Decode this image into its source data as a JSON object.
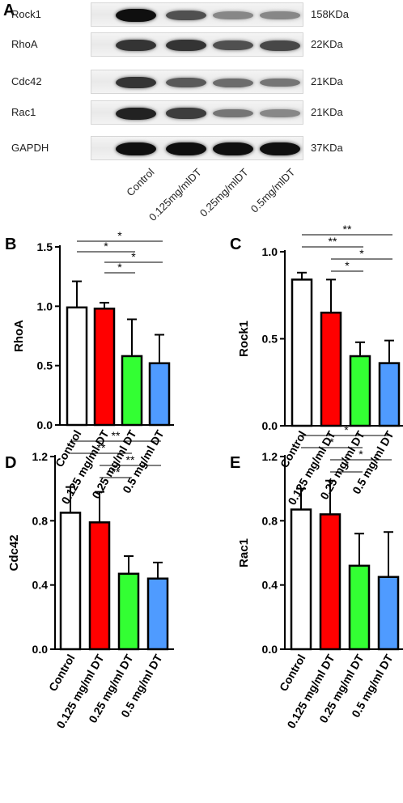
{
  "panelA": {
    "letter": "A",
    "rows": [
      {
        "label": "Rock1",
        "kda": "158KDa",
        "intensity": [
          1.0,
          0.65,
          0.35,
          0.35
        ]
      },
      {
        "label": "RhoA",
        "kda": "22KDa",
        "intensity": [
          0.8,
          0.8,
          0.65,
          0.7
        ]
      },
      {
        "label": "Cdc42",
        "kda": "21KDa",
        "intensity": [
          0.8,
          0.6,
          0.5,
          0.45
        ]
      },
      {
        "label": "Rac1",
        "kda": "21KDa",
        "intensity": [
          0.9,
          0.75,
          0.45,
          0.35
        ]
      },
      {
        "label": "GAPDH",
        "kda": "37KDa",
        "intensity": [
          1.0,
          1.0,
          1.0,
          1.0
        ]
      }
    ],
    "lanes": [
      "Control",
      "0.125mg/mlDT",
      "0.25mg/mlDT",
      "0.5mg/mlDT"
    ]
  },
  "chart_data": [
    {
      "panel": "B",
      "type": "bar",
      "ylabel": "RhoA",
      "ylim": [
        0,
        1.5
      ],
      "yticks": [
        "0.0",
        "0.5",
        "1.0",
        "1.5"
      ],
      "categories": [
        "Control",
        "0.125 mg/ml DT",
        "0.25 mg/ml DT",
        "0.5 mg/ml DT"
      ],
      "values": [
        0.99,
        0.98,
        0.58,
        0.52
      ],
      "errors": [
        0.22,
        0.05,
        0.31,
        0.24
      ],
      "colors": [
        "#ffffff",
        "#ff0000",
        "#33ff33",
        "#4f9bff"
      ],
      "significance": [
        {
          "from": 0,
          "to": 3,
          "label": "*"
        },
        {
          "from": 0,
          "to": 2,
          "label": "*"
        },
        {
          "from": 1,
          "to": 3,
          "label": "*"
        },
        {
          "from": 1,
          "to": 2,
          "label": "*"
        }
      ]
    },
    {
      "panel": "C",
      "type": "bar",
      "ylabel": "Rock1",
      "ylim": [
        0,
        1.0
      ],
      "yticks": [
        "0.0",
        "0.5",
        "1.0"
      ],
      "categories": [
        "Control",
        "0.125 mg/ml DT",
        "0.25 mg/ml DT",
        "0.5 mg/ml DT"
      ],
      "values": [
        0.84,
        0.65,
        0.4,
        0.36
      ],
      "errors": [
        0.04,
        0.19,
        0.08,
        0.13
      ],
      "colors": [
        "#ffffff",
        "#ff0000",
        "#33ff33",
        "#4f9bff"
      ],
      "significance": [
        {
          "from": 0,
          "to": 3,
          "label": "**"
        },
        {
          "from": 0,
          "to": 2,
          "label": "**"
        },
        {
          "from": 1,
          "to": 3,
          "label": "*"
        },
        {
          "from": 1,
          "to": 2,
          "label": "*"
        }
      ]
    },
    {
      "panel": "D",
      "type": "bar",
      "ylabel": "Cdc42",
      "ylim": [
        0,
        1.2
      ],
      "yticks": [
        "0.0",
        "0.4",
        "0.8",
        "1.2"
      ],
      "categories": [
        "Control",
        "0.125 mg/ml DT",
        "0.25 mg/ml DT",
        "0.5 mg/ml DT"
      ],
      "values": [
        0.85,
        0.79,
        0.47,
        0.44
      ],
      "errors": [
        0.16,
        0.19,
        0.11,
        0.1
      ],
      "colors": [
        "#ffffff",
        "#ff0000",
        "#33ff33",
        "#4f9bff"
      ],
      "significance": [
        {
          "from": 0,
          "to": 3,
          "label": "**"
        },
        {
          "from": 0,
          "to": 2,
          "label": "**"
        },
        {
          "from": 1,
          "to": 3,
          "label": "**"
        },
        {
          "from": 1,
          "to": 2,
          "label": "**"
        }
      ]
    },
    {
      "panel": "E",
      "type": "bar",
      "ylabel": "Rac1",
      "ylim": [
        0,
        1.2
      ],
      "yticks": [
        "0.0",
        "0.4",
        "0.8",
        "1.2"
      ],
      "categories": [
        "Control",
        "0.125 mg/ml DT",
        "0.25 mg/ml DT",
        "0.5 mg/ml DT"
      ],
      "values": [
        0.87,
        0.84,
        0.52,
        0.45
      ],
      "errors": [
        0.13,
        0.21,
        0.2,
        0.28
      ],
      "colors": [
        "#ffffff",
        "#ff0000",
        "#33ff33",
        "#4f9bff"
      ],
      "significance": [
        {
          "from": 0,
          "to": 3,
          "label": "*"
        },
        {
          "from": 0,
          "to": 2,
          "label": "*"
        },
        {
          "from": 1,
          "to": 3,
          "label": "*"
        },
        {
          "from": 1,
          "to": 2,
          "label": "*"
        }
      ]
    }
  ]
}
